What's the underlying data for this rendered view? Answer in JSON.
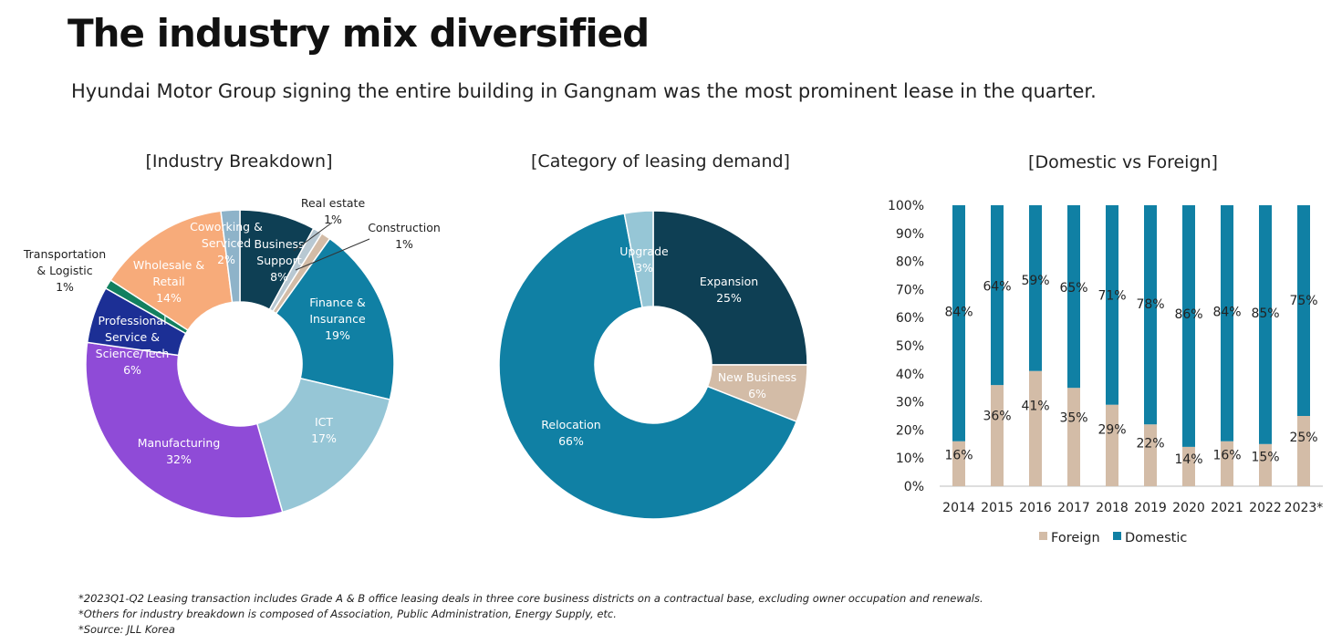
{
  "page": {
    "title": "The industry mix diversified",
    "subtitle": "Hyundai Motor Group signing the entire building in Gangnam was the most prominent lease in the quarter."
  },
  "colors": {
    "dark_teal": "#0e3f54",
    "teal": "#1080a4",
    "light_blue": "#96c6d6",
    "grey_blue": "#8eb3c9",
    "tan": "#d3bca7",
    "peach": "#f7ab7a",
    "green": "#12805f",
    "navy": "#1c2f95",
    "purple": "#8f4bd7"
  },
  "chart_data": [
    {
      "type": "pie",
      "variant": "donut",
      "title": "[Industry Breakdown]",
      "slices": [
        {
          "label": "Business Support",
          "value": 8,
          "value_label": "8%",
          "color": "#0e3f54"
        },
        {
          "label": "Real estate",
          "value": 1,
          "value_label": "1%",
          "color": "#b8c8d2"
        },
        {
          "label": "Construction",
          "value": 1,
          "value_label": "1%",
          "color": "#d3bca7"
        },
        {
          "label": "Finance & Insurance",
          "value": 19,
          "value_label": "19%",
          "color": "#1080a4"
        },
        {
          "label": "ICT",
          "value": 17,
          "value_label": "17%",
          "color": "#96c6d6"
        },
        {
          "label": "Manufacturing",
          "value": 32,
          "value_label": "32%",
          "color": "#8f4bd7"
        },
        {
          "label": "Professional Service & Science/Tech",
          "value": 6,
          "value_label": "6%",
          "color": "#1c2f95"
        },
        {
          "label": "Transportation & Logistic",
          "value": 1,
          "value_label": "1%",
          "color": "#12805f"
        },
        {
          "label": "Wholesale & Retail",
          "value": 14,
          "value_label": "14%",
          "color": "#f7ab7a"
        },
        {
          "label": "Coworking & Serviced",
          "value": 2,
          "value_label": "2%",
          "color": "#8eb3c9"
        }
      ]
    },
    {
      "type": "pie",
      "variant": "donut",
      "title": "[Category of leasing demand]",
      "slices": [
        {
          "label": "Expansion",
          "value": 25,
          "value_label": "25%",
          "color": "#0e3f54"
        },
        {
          "label": "New Business",
          "value": 6,
          "value_label": "6%",
          "color": "#d3bca7"
        },
        {
          "label": "Relocation",
          "value": 66,
          "value_label": "66%",
          "color": "#1080a4"
        },
        {
          "label": "Upgrade",
          "value": 3,
          "value_label": "3%",
          "color": "#96c6d6"
        }
      ]
    },
    {
      "type": "bar",
      "stacked": true,
      "percent_stacked": true,
      "title": "[Domestic vs Foreign]",
      "categories": [
        "2014",
        "2015",
        "2016",
        "2017",
        "2018",
        "2019",
        "2020",
        "2021",
        "2022",
        "2023*"
      ],
      "series": [
        {
          "name": "Foreign",
          "color": "#d3bca7",
          "values": [
            16,
            36,
            41,
            35,
            29,
            22,
            14,
            16,
            15,
            25
          ],
          "labels": [
            "16%",
            "36%",
            "41%",
            "35%",
            "29%",
            "22%",
            "14%",
            "16%",
            "15%",
            "25%"
          ]
        },
        {
          "name": "Domestic",
          "color": "#1080a4",
          "values": [
            84,
            64,
            59,
            65,
            71,
            78,
            86,
            84,
            85,
            75
          ],
          "labels": [
            "84%",
            "64%",
            "59%",
            "65%",
            "71%",
            "78%",
            "86%",
            "84%",
            "85%",
            "75%"
          ]
        }
      ],
      "y_ticks": [
        "0%",
        "10%",
        "20%",
        "30%",
        "40%",
        "50%",
        "60%",
        "70%",
        "80%",
        "90%",
        "100%"
      ],
      "ylim": [
        0,
        100
      ],
      "grid": false,
      "legend_position": "bottom"
    }
  ],
  "footnotes": [
    "*2023Q1-Q2 Leasing transaction includes Grade A & B office leasing deals in three core business districts on a contractual base, excluding owner occupation and renewals.",
    "*Others for industry breakdown is composed of Association, Public Administration, Energy Supply, etc.",
    "*Source: JLL Korea"
  ]
}
